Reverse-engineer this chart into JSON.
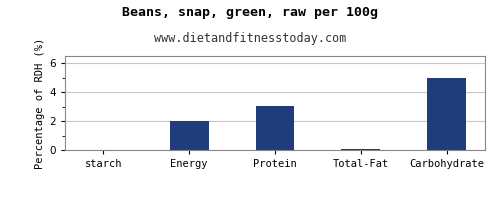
{
  "title": "Beans, snap, green, raw per 100g",
  "subtitle": "www.dietandfitnesstoday.com",
  "ylabel": "Percentage of RDH (%)",
  "categories": [
    "starch",
    "Energy",
    "Protein",
    "Total-Fat",
    "Carbohydrate"
  ],
  "values": [
    0.0,
    2.0,
    3.07,
    0.09,
    5.0
  ],
  "bar_color": "#1f3d7a",
  "ylim": [
    0,
    6.5
  ],
  "yticks": [
    0,
    2,
    4,
    6
  ],
  "background_color": "#ffffff",
  "plot_bg_color": "#ffffff",
  "grid_color": "#c8c8c8",
  "title_fontsize": 9.5,
  "subtitle_fontsize": 8.5,
  "ylabel_fontsize": 7.5,
  "tick_fontsize": 7.5,
  "border_color": "#888888",
  "bar_width": 0.45
}
